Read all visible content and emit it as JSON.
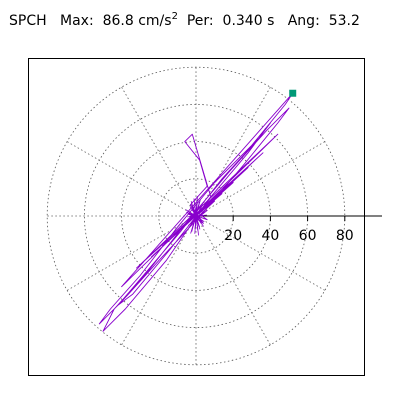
{
  "header": {
    "station": "SPCH",
    "max_label": "Max:",
    "max_value": "86.8",
    "max_unit": "cm/s",
    "max_unit_exp": "2",
    "per_label": "Per:",
    "per_value": "0.340 s",
    "ang_label": "Ang:",
    "ang_value": "53.2"
  },
  "colors": {
    "trace": "#8800cc",
    "marker": "#009977",
    "grid": "#555555",
    "axis": "#000000"
  },
  "chart_data": {
    "type": "polar-orbit",
    "title": "",
    "radial_ticks": [
      20,
      40,
      60,
      80
    ],
    "radial_tick_labels": [
      "20",
      "40",
      "60",
      "80"
    ],
    "rmax": 100,
    "spoke_angles_deg": [
      0,
      30,
      60,
      90,
      120,
      150,
      180,
      210,
      240,
      270,
      300,
      330
    ],
    "grid": true,
    "max_amplitude": 86.8,
    "peak_angle_deg": 53.2,
    "peak_marker": {
      "x": 52,
      "y": 66
    },
    "trace": [
      [
        2,
        0
      ],
      [
        6,
        3
      ],
      [
        -4,
        -5
      ],
      [
        10,
        8
      ],
      [
        -8,
        -6
      ],
      [
        14,
        12
      ],
      [
        -12,
        -10
      ],
      [
        20,
        18
      ],
      [
        -18,
        -16
      ],
      [
        28,
        26
      ],
      [
        -24,
        -22
      ],
      [
        36,
        34
      ],
      [
        -32,
        -28
      ],
      [
        44,
        44
      ],
      [
        -40,
        -38
      ],
      [
        52,
        66
      ],
      [
        48,
        60
      ],
      [
        30,
        38
      ],
      [
        10,
        18
      ],
      [
        -10,
        -6
      ],
      [
        -30,
        -32
      ],
      [
        -46,
        -50
      ],
      [
        -52,
        -58
      ],
      [
        -40,
        -46
      ],
      [
        -20,
        -24
      ],
      [
        4,
        2
      ],
      [
        26,
        28
      ],
      [
        44,
        50
      ],
      [
        50,
        58
      ],
      [
        38,
        46
      ],
      [
        18,
        24
      ],
      [
        -4,
        -2
      ],
      [
        -26,
        -30
      ],
      [
        -44,
        -50
      ],
      [
        -50,
        -62
      ],
      [
        -38,
        -50
      ],
      [
        -16,
        -24
      ],
      [
        6,
        8
      ],
      [
        28,
        34
      ],
      [
        40,
        50
      ],
      [
        34,
        42
      ],
      [
        14,
        20
      ],
      [
        -8,
        -8
      ],
      [
        -30,
        -34
      ],
      [
        -42,
        -48
      ],
      [
        -34,
        -42
      ],
      [
        -14,
        -18
      ],
      [
        8,
        10
      ],
      [
        -2,
        44
      ],
      [
        -6,
        40
      ],
      [
        2,
        30
      ],
      [
        6,
        16
      ],
      [
        -3,
        6
      ],
      [
        4,
        -4
      ],
      [
        -5,
        2
      ],
      [
        6,
        -2
      ],
      [
        -2,
        4
      ],
      [
        3,
        -3
      ],
      [
        -4,
        1
      ],
      [
        1,
        0
      ]
    ]
  }
}
